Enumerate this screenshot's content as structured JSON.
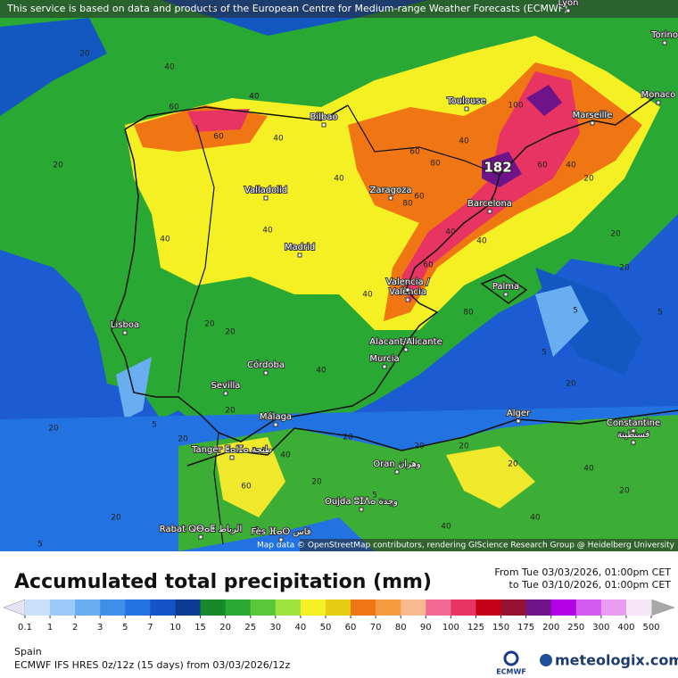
{
  "disclaimer": "This service is based on data and products of the European Centre for Medium-range Weather Forecasts (ECMWF)",
  "attribution": "Map data © OpenStreetMap contributors, rendering GIScience Research Group @ Heidelberg University",
  "title": "Accumulated total precipitation (mm)",
  "period_from": "From Tue 03/03/2026, 01:00pm CET",
  "period_to": "to Tue 03/10/2026, 01:00pm CET",
  "region": "Spain",
  "model": "ECMWF IFS HRES 0z/12z (15 days) from  03/03/2026/12z",
  "logos": {
    "ecmwf": "ECMWF",
    "brand": "meteologix.com"
  },
  "max_label": "182",
  "cities": [
    "Lyon",
    "Torino",
    "Monaco",
    "Marseille",
    "Toulouse",
    "Bilbao",
    "Valladolid",
    "Zaragoza",
    "Barcelona",
    "Madrid",
    "Valencia /",
    "València",
    "Palma",
    "Lisboa",
    "Alacant/Alicante",
    "Murcia",
    "Córdoba",
    "Sevilla",
    "Málaga",
    "Alger",
    "Constantine",
    "قسنطينة",
    "Tanger ⵟⴰⵏⵊⴰ طنجة",
    "Oran وهران",
    "Oujda ⵓⵊⴷⴰ وجدة",
    "Rabat ⵕⴱⴰⵟ الرباط",
    "Fès ⴼⴰⵙ فاس"
  ],
  "contour_labels": [
    20,
    20,
    40,
    40,
    20,
    60,
    60,
    40,
    40,
    40,
    60,
    80,
    40,
    100,
    60,
    40,
    20,
    40,
    20,
    60,
    40,
    60,
    80,
    40,
    80,
    40,
    20,
    40,
    20,
    20,
    40,
    20,
    5,
    40,
    20,
    20,
    20,
    5,
    20,
    20,
    5,
    20,
    40,
    5,
    20,
    40,
    60,
    20,
    40,
    20,
    5,
    20,
    5
  ],
  "legend": {
    "ticks": [
      0.1,
      1,
      2,
      3,
      5,
      7,
      10,
      15,
      20,
      25,
      30,
      40,
      50,
      60,
      70,
      80,
      90,
      100,
      125,
      150,
      175,
      200,
      250,
      300,
      400,
      500
    ],
    "under_color": "#e4e4f4",
    "over_color": "#a8a8a8",
    "colors": [
      "#c8e0fa",
      "#9ccaf8",
      "#6aaef2",
      "#3f8fea",
      "#2272e2",
      "#1254c8",
      "#0c3a92",
      "#168a2a",
      "#2aaa32",
      "#58c83a",
      "#9ee23e",
      "#f4f024",
      "#e6cc12",
      "#f07614",
      "#f69a40",
      "#f8b890",
      "#f26894",
      "#e83462",
      "#c40018",
      "#921030",
      "#6e1488",
      "#b400e6",
      "#d45af2",
      "#e89cf2",
      "#f6e6f8"
    ]
  }
}
